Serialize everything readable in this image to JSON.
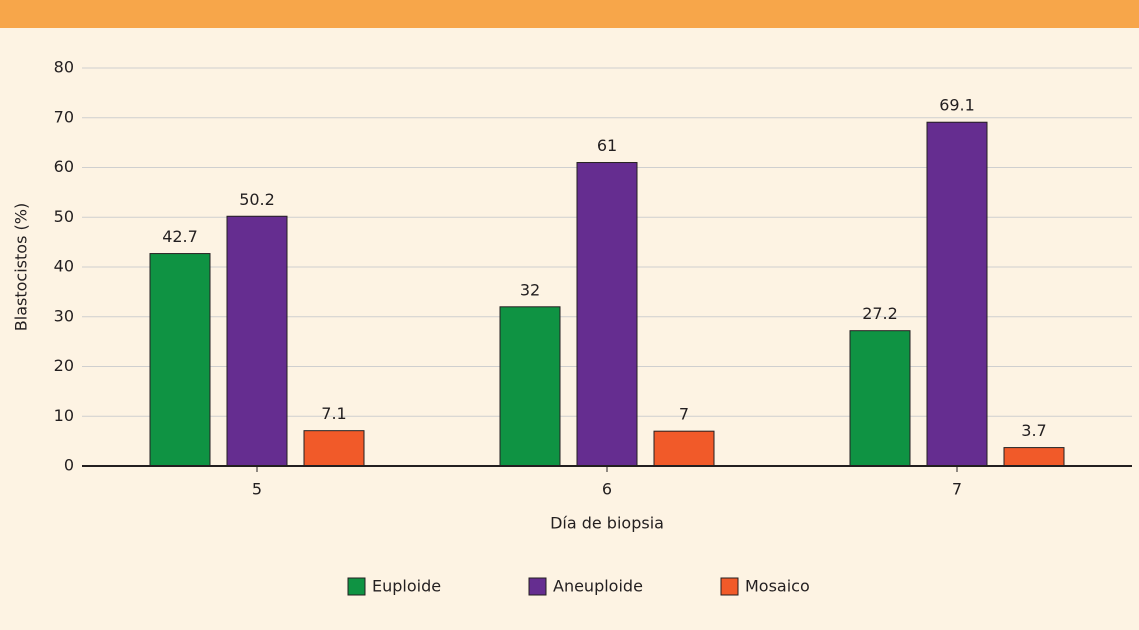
{
  "chart_data": {
    "type": "bar",
    "categories": [
      "5",
      "6",
      "7"
    ],
    "series": [
      {
        "name": "Euploide",
        "color": "#0f9343",
        "values": [
          42.7,
          32,
          27.2
        ]
      },
      {
        "name": "Aneuploide",
        "color": "#652d90",
        "values": [
          50.2,
          61,
          69.1
        ]
      },
      {
        "name": "Mosaico",
        "color": "#f15a29",
        "values": [
          7.1,
          7,
          3.7
        ]
      }
    ],
    "x_label": "Día de biopsia",
    "y_label": "Blastocistos (%)",
    "ylim": [
      0,
      80
    ],
    "yticks": [
      0,
      10,
      20,
      30,
      40,
      50,
      60,
      70,
      80
    ],
    "grid": true,
    "legend": "bottom"
  }
}
